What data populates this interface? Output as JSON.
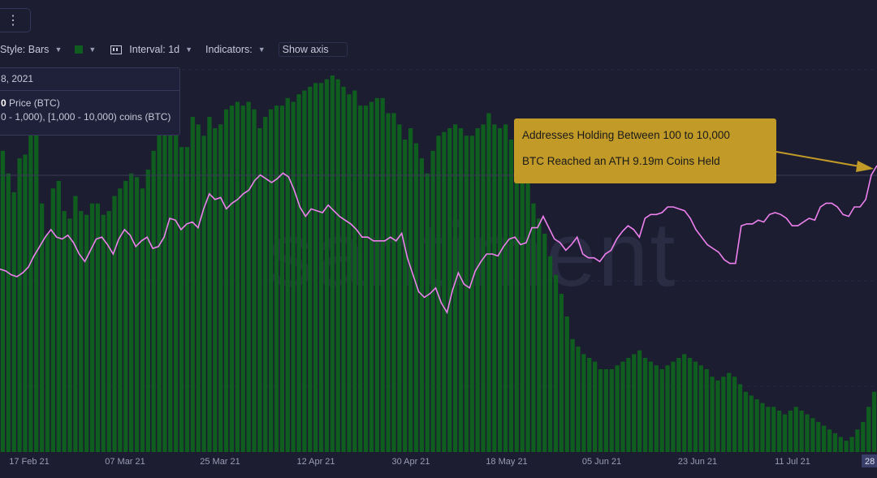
{
  "toolbar": {
    "menu_glyph": "⋮",
    "style_label": "Style: Bars",
    "color_swatch": "#0f5d1f",
    "interval_label": "Interval: 1d",
    "indicators_label": "Indicators:",
    "show_axis_label": "Show axis"
  },
  "tooltip": {
    "date": "8, 2021",
    "price_value": "0",
    "price_label": "Price (BTC)",
    "holders_label": "0 - 1,000), [1,000 - 10,000) coins (BTC)"
  },
  "annotation": {
    "line1": "Addresses Holding Between 100 to 10,000",
    "line2": "BTC Reached an ATH 9.19m Coins Held",
    "color": "#c19a27"
  },
  "watermark": "santiment",
  "colors": {
    "background": "#1c1d31",
    "bars": "#0f5d1f",
    "line": "#ee80ee",
    "arrow": "#c19a27"
  },
  "chart_data": {
    "type": "bar",
    "x_tick_labels": [
      "17 Feb 21",
      "07 Mar 21",
      "25 Mar 21",
      "12 Apr 21",
      "30 Apr 21",
      "18 May 21",
      "05 Jun 21",
      "23 Jun 21",
      "11 Jul 21",
      "28"
    ],
    "bar_series_index": [
      0.8,
      0.74,
      0.69,
      0.78,
      0.79,
      0.92,
      0.88,
      0.66,
      0.58,
      0.7,
      0.72,
      0.64,
      0.62,
      0.68,
      0.64,
      0.63,
      0.66,
      0.66,
      0.63,
      0.64,
      0.68,
      0.7,
      0.72,
      0.74,
      0.73,
      0.7,
      0.75,
      0.8,
      0.85,
      0.9,
      0.88,
      0.87,
      0.81,
      0.81,
      0.89,
      0.87,
      0.84,
      0.89,
      0.86,
      0.87,
      0.91,
      0.92,
      0.93,
      0.92,
      0.93,
      0.91,
      0.86,
      0.89,
      0.91,
      0.92,
      0.92,
      0.94,
      0.93,
      0.95,
      0.96,
      0.97,
      0.98,
      0.98,
      0.99,
      1.0,
      0.99,
      0.97,
      0.95,
      0.96,
      0.92,
      0.92,
      0.93,
      0.94,
      0.94,
      0.9,
      0.9,
      0.87,
      0.83,
      0.86,
      0.82,
      0.78,
      0.74,
      0.8,
      0.84,
      0.85,
      0.86,
      0.87,
      0.86,
      0.84,
      0.84,
      0.86,
      0.87,
      0.9,
      0.87,
      0.86,
      0.87,
      0.83,
      0.79,
      0.76,
      0.72,
      0.66,
      0.62,
      0.58,
      0.52,
      0.47,
      0.42,
      0.36,
      0.3,
      0.28,
      0.26,
      0.25,
      0.24,
      0.22,
      0.22,
      0.22,
      0.23,
      0.24,
      0.25,
      0.26,
      0.27,
      0.25,
      0.24,
      0.23,
      0.22,
      0.23,
      0.24,
      0.25,
      0.26,
      0.25,
      0.24,
      0.23,
      0.22,
      0.2,
      0.19,
      0.2,
      0.21,
      0.2,
      0.18,
      0.16,
      0.15,
      0.14,
      0.13,
      0.12,
      0.12,
      0.11,
      0.1,
      0.11,
      0.12,
      0.11,
      0.1,
      0.09,
      0.08,
      0.07,
      0.06,
      0.05,
      0.04,
      0.03,
      0.04,
      0.06,
      0.08,
      0.12,
      0.16
    ],
    "line_series_index": [
      0.45,
      0.44,
      0.42,
      0.41,
      0.43,
      0.46,
      0.52,
      0.57,
      0.62,
      0.66,
      0.62,
      0.61,
      0.63,
      0.59,
      0.53,
      0.49,
      0.55,
      0.61,
      0.62,
      0.58,
      0.53,
      0.61,
      0.66,
      0.63,
      0.57,
      0.6,
      0.62,
      0.56,
      0.57,
      0.62,
      0.72,
      0.71,
      0.66,
      0.69,
      0.7,
      0.67,
      0.77,
      0.85,
      0.82,
      0.83,
      0.77,
      0.8,
      0.82,
      0.85,
      0.87,
      0.92,
      0.95,
      0.93,
      0.91,
      0.93,
      0.96,
      0.94,
      0.87,
      0.78,
      0.73,
      0.77,
      0.76,
      0.75,
      0.79,
      0.76,
      0.73,
      0.71,
      0.69,
      0.66,
      0.62,
      0.62,
      0.6,
      0.6,
      0.6,
      0.62,
      0.6,
      0.64,
      0.51,
      0.42,
      0.33,
      0.3,
      0.32,
      0.35,
      0.27,
      0.22,
      0.34,
      0.43,
      0.37,
      0.35,
      0.44,
      0.49,
      0.53,
      0.53,
      0.52,
      0.57,
      0.61,
      0.62,
      0.58,
      0.59,
      0.67,
      0.67,
      0.73,
      0.67,
      0.61,
      0.59,
      0.55,
      0.58,
      0.62,
      0.53,
      0.51,
      0.51,
      0.49,
      0.53,
      0.55,
      0.61,
      0.65,
      0.68,
      0.66,
      0.62,
      0.72,
      0.74,
      0.74,
      0.75,
      0.78,
      0.78,
      0.77,
      0.76,
      0.72,
      0.66,
      0.62,
      0.58,
      0.56,
      0.54,
      0.5,
      0.48,
      0.48,
      0.68,
      0.69,
      0.69,
      0.71,
      0.7,
      0.74,
      0.75,
      0.74,
      0.72,
      0.68,
      0.68,
      0.7,
      0.72,
      0.71,
      0.78,
      0.8,
      0.8,
      0.78,
      0.74,
      0.73,
      0.78,
      0.78,
      0.82,
      0.95,
      1.0
    ],
    "grid": true,
    "legend": "none"
  }
}
